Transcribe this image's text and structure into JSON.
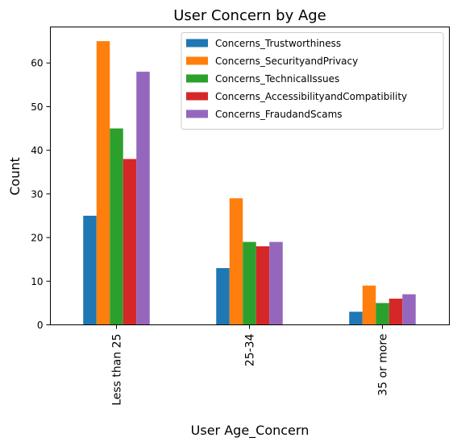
{
  "chart_data": {
    "type": "bar",
    "title": "User Concern by Age",
    "xlabel": "User Age_Concern",
    "ylabel": "Count",
    "categories": [
      "Less than 25",
      "25-34",
      "35 or more"
    ],
    "series": [
      {
        "name": "Concerns_Trustworthiness",
        "color": "#1f77b4",
        "values": [
          25,
          13,
          3
        ]
      },
      {
        "name": "Concerns_SecurityandPrivacy",
        "color": "#ff7f0e",
        "values": [
          65,
          29,
          9
        ]
      },
      {
        "name": "Concerns_TechnicalIssues",
        "color": "#2ca02c",
        "values": [
          45,
          19,
          5
        ]
      },
      {
        "name": "Concerns_AccessibilityandCompatibility",
        "color": "#d62728",
        "values": [
          38,
          18,
          6
        ]
      },
      {
        "name": "Concerns_FraudandScams",
        "color": "#9467bd",
        "values": [
          58,
          19,
          7
        ]
      }
    ],
    "ylim": [
      0,
      68.25
    ],
    "yticks": [
      0,
      10,
      20,
      30,
      40,
      50,
      60
    ],
    "legend_position": "top-right",
    "grid": false
  }
}
